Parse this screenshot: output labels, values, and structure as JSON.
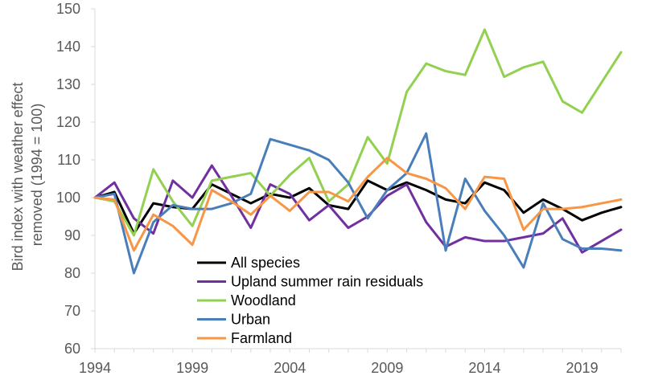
{
  "chart_data": {
    "type": "line",
    "title": "",
    "xlabel": "",
    "ylabel": "Bird index with weather effect removed (1994 = 100)",
    "ylabel_lines": [
      "Bird index with weather effect",
      "removed (1994 = 100)"
    ],
    "xlim": [
      1994,
      2021
    ],
    "ylim": [
      60,
      150
    ],
    "x_ticks": [
      1994,
      1999,
      2004,
      2009,
      2014,
      2019
    ],
    "y_ticks": [
      60,
      70,
      80,
      90,
      100,
      110,
      120,
      130,
      140,
      150
    ],
    "grid": false,
    "legend_position": "lower-left inside plot",
    "x": [
      1994,
      1995,
      1996,
      1997,
      1998,
      1999,
      2000,
      2001,
      2002,
      2003,
      2004,
      2005,
      2006,
      2007,
      2008,
      2009,
      2010,
      2011,
      2012,
      2013,
      2014,
      2015,
      2016,
      2017,
      2018,
      2019,
      2020,
      2021
    ],
    "series": [
      {
        "name": "All species",
        "color": "#000000",
        "values": [
          100,
          101.5,
          90.5,
          98.5,
          97.5,
          97,
          103.5,
          101,
          98.5,
          101,
          100,
          102.5,
          98,
          97,
          104.5,
          102,
          104,
          102,
          99.5,
          98.5,
          104,
          102,
          96,
          99.5,
          97,
          94,
          96,
          97.5
        ]
      },
      {
        "name": "Upland summer rain residuals",
        "color": "#7030a0",
        "values": [
          100,
          104,
          94.5,
          90.5,
          104.5,
          100,
          108.5,
          100.5,
          92,
          103.5,
          101,
          94,
          98,
          92,
          95,
          100.5,
          103.5,
          93.5,
          87,
          89.5,
          88.5,
          88.5,
          89.5,
          90.5,
          94.5,
          85.5,
          88.5,
          91.5
        ]
      },
      {
        "name": "Woodland",
        "color": "#92d050",
        "values": [
          100,
          99,
          90,
          107.5,
          99,
          92.5,
          104.5,
          105.5,
          106.5,
          100.5,
          106,
          110.5,
          99,
          103.5,
          116,
          109,
          128,
          135.5,
          133.5,
          132.5,
          144.5,
          132,
          134.5,
          136,
          125.5,
          122.5,
          130.5,
          138.5
        ]
      },
      {
        "name": "Urban",
        "color": "#4a7ebb",
        "values": [
          100,
          101,
          80,
          93.5,
          98,
          97,
          97,
          98.5,
          101,
          115.5,
          114,
          112.5,
          110,
          104,
          94.5,
          102,
          106.5,
          117,
          86,
          105,
          96.5,
          90,
          81.5,
          98.5,
          89,
          86.5,
          86.5,
          86
        ]
      },
      {
        "name": "Farmland",
        "color": "#f79646",
        "values": [
          100,
          99.5,
          86,
          95.5,
          92.5,
          87.5,
          102,
          99,
          95.5,
          100.5,
          96.5,
          101.5,
          101.5,
          99,
          105.5,
          110.5,
          106.5,
          105,
          102.5,
          97,
          105.5,
          105,
          91.5,
          97,
          97,
          97.5,
          98.5,
          99.5
        ]
      }
    ]
  }
}
